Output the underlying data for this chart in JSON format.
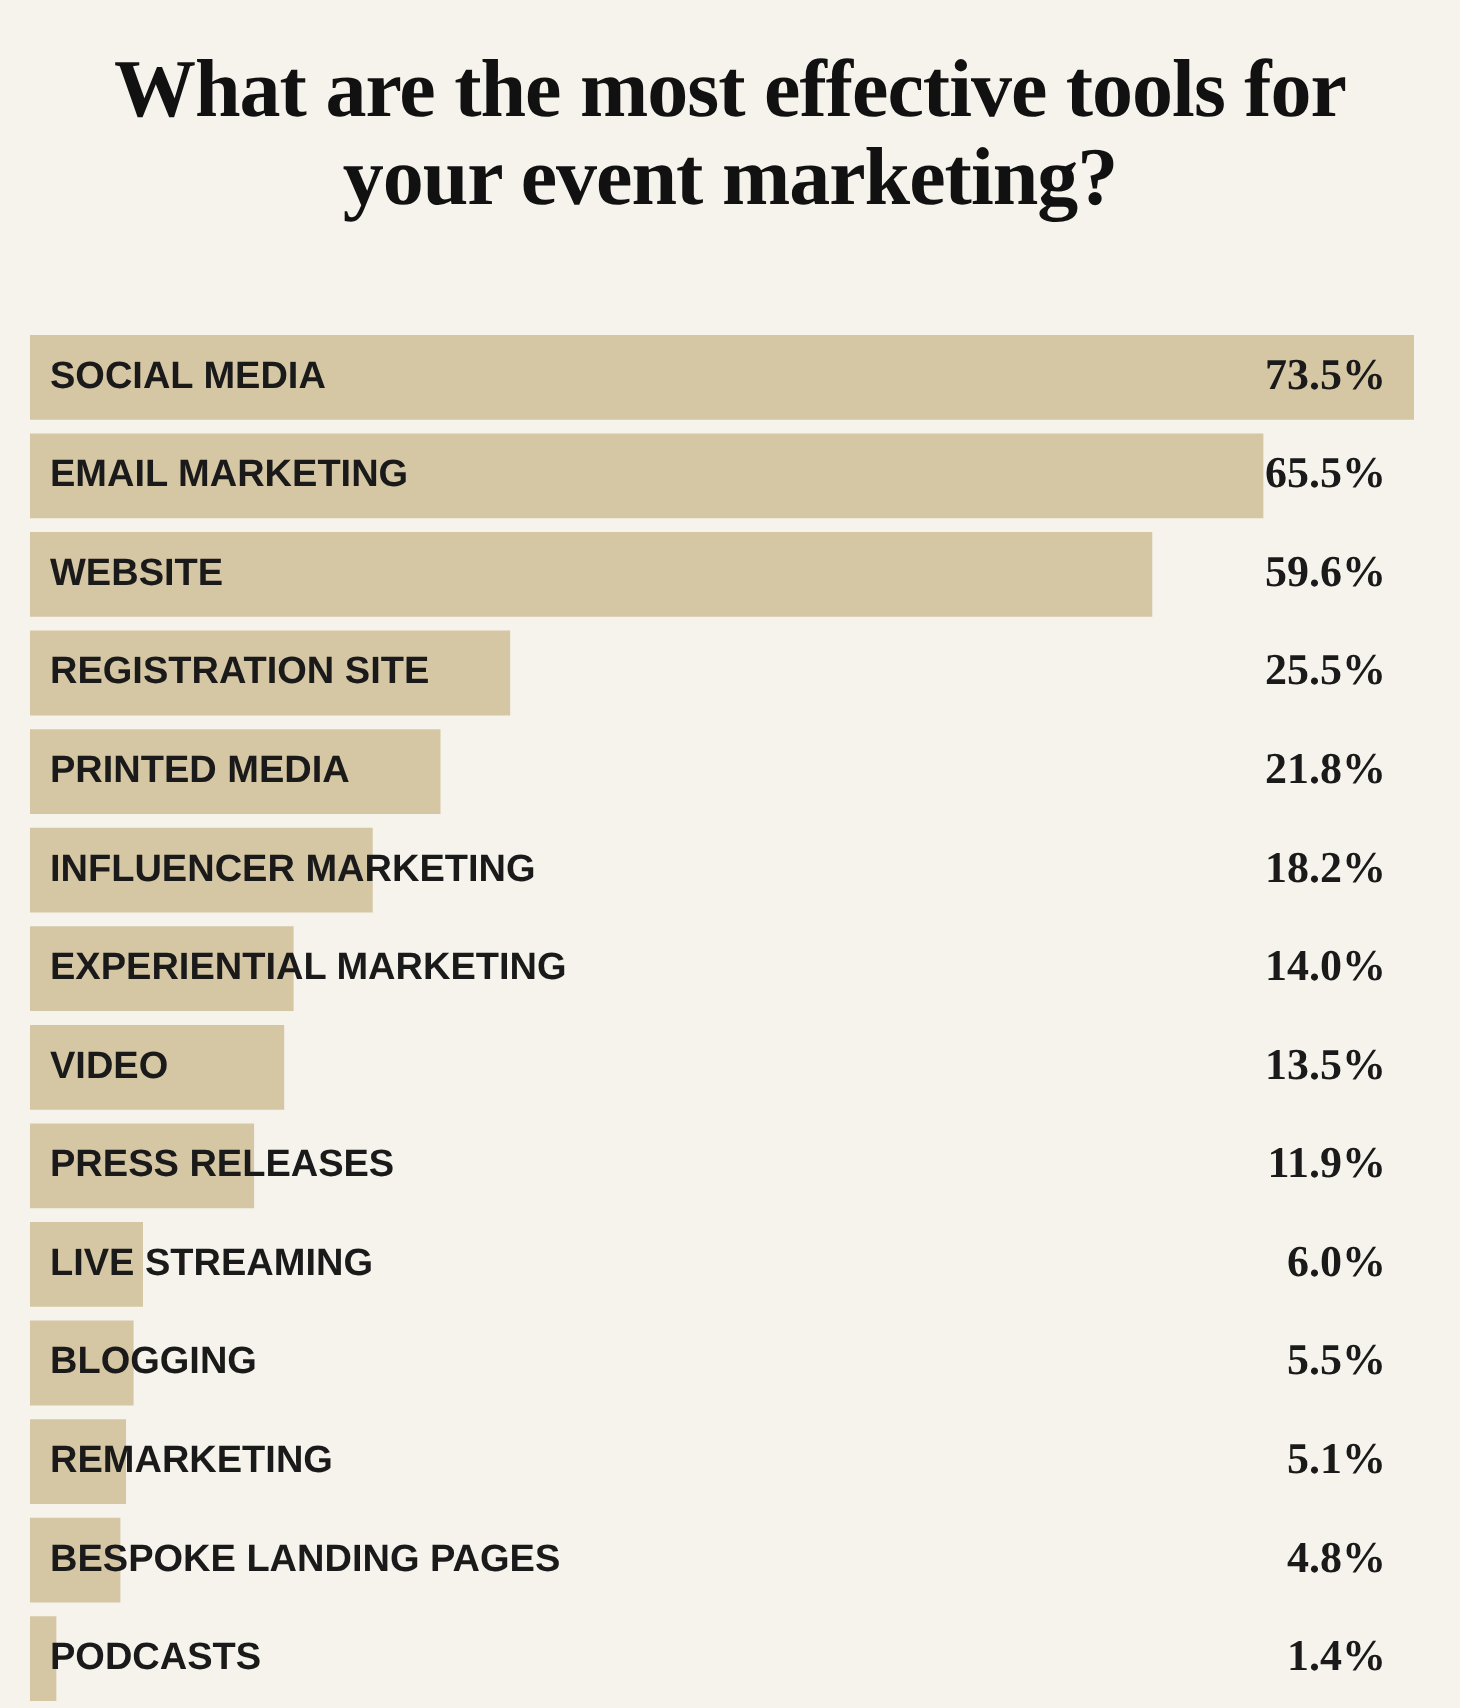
{
  "chart_data": {
    "type": "bar",
    "orientation": "horizontal",
    "title": "What are the most effective tools for your event marketing?",
    "categories": [
      "SOCIAL MEDIA",
      "EMAIL MARKETING",
      "WEBSITE",
      "REGISTRATION SITE",
      "PRINTED MEDIA",
      "INFLUENCER MARKETING",
      "EXPERIENTIAL MARKETING",
      "VIDEO",
      "PRESS RELEASES",
      "LIVE STREAMING",
      "BLOGGING",
      "REMARKETING",
      "BESPOKE LANDING PAGES",
      "PODCASTS"
    ],
    "values": [
      73.5,
      65.5,
      59.6,
      25.5,
      21.8,
      18.2,
      14.0,
      13.5,
      11.9,
      6.0,
      5.5,
      5.1,
      4.8,
      1.4
    ],
    "value_labels": [
      "73.5%",
      "65.5%",
      "59.6%",
      "25.5%",
      "21.8%",
      "18.2%",
      "14.0%",
      "13.5%",
      "11.9%",
      "6.0%",
      "5.5%",
      "5.1%",
      "4.8%",
      "1.4%"
    ],
    "color": "#d5c6a4",
    "xlim": [
      0,
      73.5
    ],
    "tick_labels": false,
    "legend": false
  }
}
